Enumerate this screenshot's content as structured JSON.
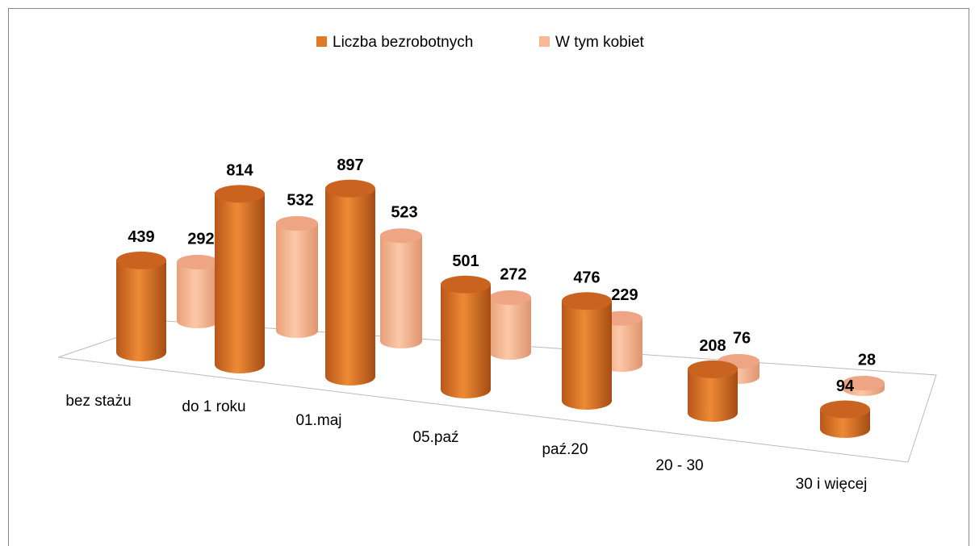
{
  "chart_data": {
    "type": "bar3d",
    "categories": [
      "bez stażu",
      "do 1 roku",
      "01.maj",
      "05.paź",
      "paź.20",
      "20 - 30",
      "30 i więcej"
    ],
    "series": [
      {
        "name": "Liczba bezrobotnych",
        "color": "#e07a26",
        "values": [
          439,
          814,
          897,
          501,
          476,
          208,
          94
        ]
      },
      {
        "name": "W tym kobiet",
        "color": "#f8b994",
        "values": [
          292,
          532,
          523,
          272,
          229,
          76,
          28
        ]
      }
    ],
    "legend": "top"
  }
}
